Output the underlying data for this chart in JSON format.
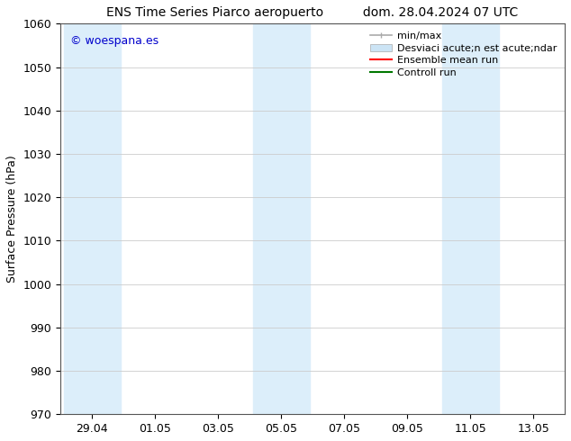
{
  "title_left": "ENS Time Series Piarco aeropuerto",
  "title_right": "dom. 28.04.2024 07 UTC",
  "ylabel": "Surface Pressure (hPa)",
  "ylim": [
    970,
    1060
  ],
  "yticks": [
    970,
    980,
    990,
    1000,
    1010,
    1020,
    1030,
    1040,
    1050,
    1060
  ],
  "xtick_labels": [
    "29.04",
    "01.05",
    "03.05",
    "05.05",
    "07.05",
    "09.05",
    "11.05",
    "13.05"
  ],
  "watermark": "© woespana.es",
  "watermark_color": "#0000cc",
  "background_color": "#ffffff",
  "shaded_band_color": "#dceefa",
  "band_tick_indices": [
    0,
    3,
    6
  ],
  "legend_label_minmax": "min/max",
  "legend_label_std": "Desviaci acute;n est acute;ndar",
  "legend_label_ensemble": "Ensemble mean run",
  "legend_label_control": "Controll run",
  "legend_color_minmax": "#aaaaaa",
  "legend_color_std": "#cce4f5",
  "legend_color_ensemble": "#ff0000",
  "legend_color_control": "#007700",
  "grid_color": "#cccccc",
  "title_fontsize": 10,
  "axis_label_fontsize": 9,
  "tick_fontsize": 9,
  "legend_fontsize": 8,
  "watermark_fontsize": 9
}
